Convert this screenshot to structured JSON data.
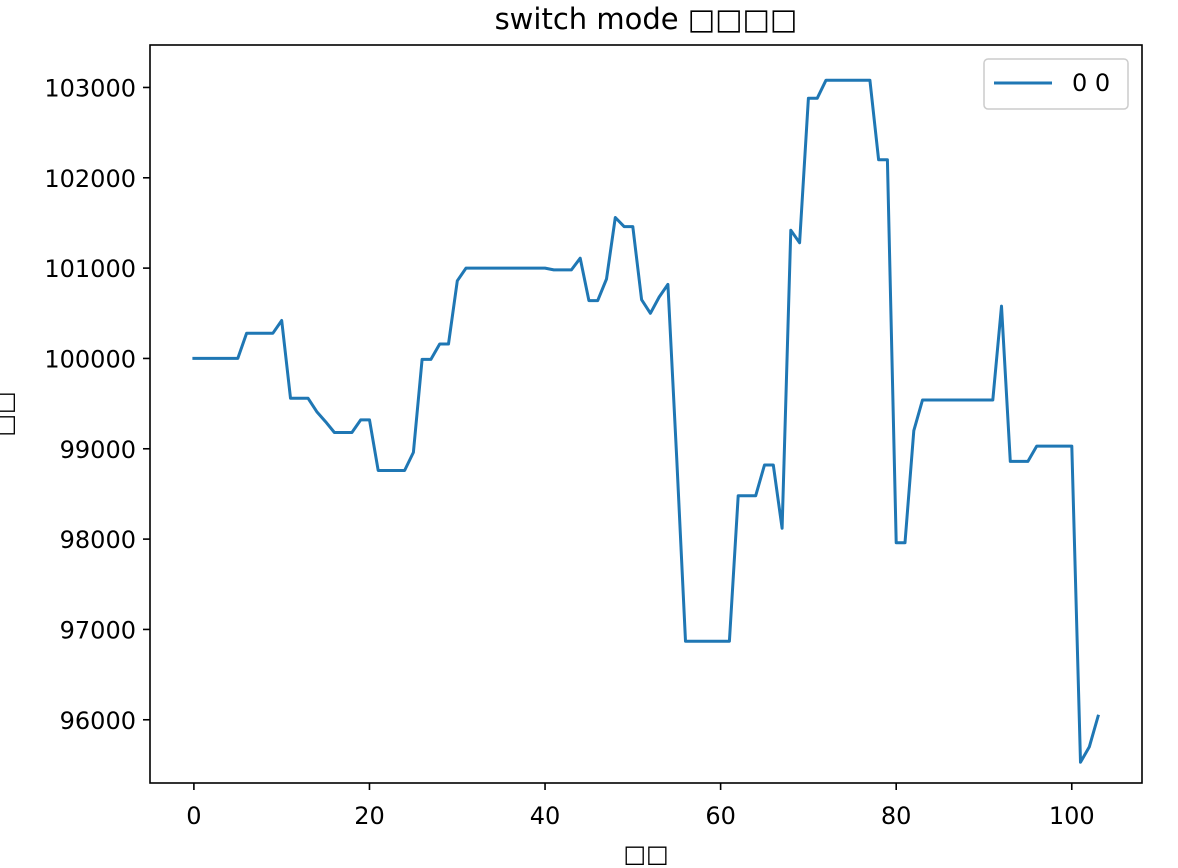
{
  "chart_data": {
    "type": "line",
    "title": "switch mode □□□□",
    "xlabel": "□□",
    "ylabel": "□□",
    "xlim": [
      -5,
      108
    ],
    "ylim": [
      95300,
      103470
    ],
    "xticks": [
      0,
      20,
      40,
      60,
      80,
      100
    ],
    "yticks": [
      96000,
      97000,
      98000,
      99000,
      100000,
      101000,
      102000,
      103000
    ],
    "xtick_labels": [
      "0",
      "20",
      "40",
      "60",
      "80",
      "100"
    ],
    "ytick_labels": [
      "96000",
      "97000",
      "98000",
      "99000",
      "100000",
      "101000",
      "102000",
      "103000"
    ],
    "grid": false,
    "legend_position": "top-right",
    "line_color": "#1f77b4",
    "series": [
      {
        "name": "0 0",
        "x": [
          0,
          1,
          2,
          3,
          4,
          5,
          6,
          7,
          8,
          9,
          10,
          11,
          12,
          13,
          14,
          15,
          16,
          17,
          18,
          19,
          20,
          21,
          22,
          23,
          24,
          25,
          26,
          27,
          28,
          29,
          30,
          31,
          32,
          33,
          34,
          35,
          36,
          37,
          38,
          39,
          40,
          41,
          42,
          43,
          44,
          45,
          46,
          47,
          48,
          49,
          50,
          51,
          52,
          53,
          54,
          55,
          56,
          57,
          58,
          59,
          60,
          61,
          62,
          63,
          64,
          65,
          66,
          67,
          68,
          69,
          70,
          71,
          72,
          73,
          74,
          75,
          76,
          77,
          78,
          79,
          80,
          81,
          82,
          83,
          84,
          85,
          86,
          87,
          88,
          89,
          90,
          91,
          92,
          93,
          94,
          95,
          96,
          97,
          98,
          99,
          100,
          101,
          102,
          103
        ],
        "values": [
          100000,
          100000,
          100000,
          100000,
          100000,
          100000,
          100280,
          100280,
          100280,
          100280,
          100420,
          99560,
          99560,
          99560,
          99410,
          99300,
          99180,
          99180,
          99180,
          99320,
          99320,
          98760,
          98760,
          98760,
          98760,
          98960,
          99990,
          99990,
          100160,
          100160,
          100860,
          101000,
          101000,
          101000,
          101000,
          101000,
          101000,
          101000,
          101000,
          101000,
          101000,
          100980,
          100980,
          100980,
          101110,
          100640,
          100640,
          100880,
          101560,
          101460,
          101460,
          100650,
          100500,
          100680,
          100820,
          98900,
          96870,
          96870,
          96870,
          96870,
          96870,
          96870,
          98480,
          98480,
          98480,
          98820,
          98820,
          98120,
          101420,
          101280,
          102880,
          102880,
          103080,
          103080,
          103080,
          103080,
          103080,
          103080,
          102200,
          102200,
          97960,
          97960,
          99200,
          99540,
          99540,
          99540,
          99540,
          99540,
          99540,
          99540,
          99540,
          99540,
          100580,
          98860,
          98860,
          98860,
          99030,
          99030,
          99030,
          99030,
          99030,
          95530,
          95700,
          96040
        ]
      }
    ]
  }
}
